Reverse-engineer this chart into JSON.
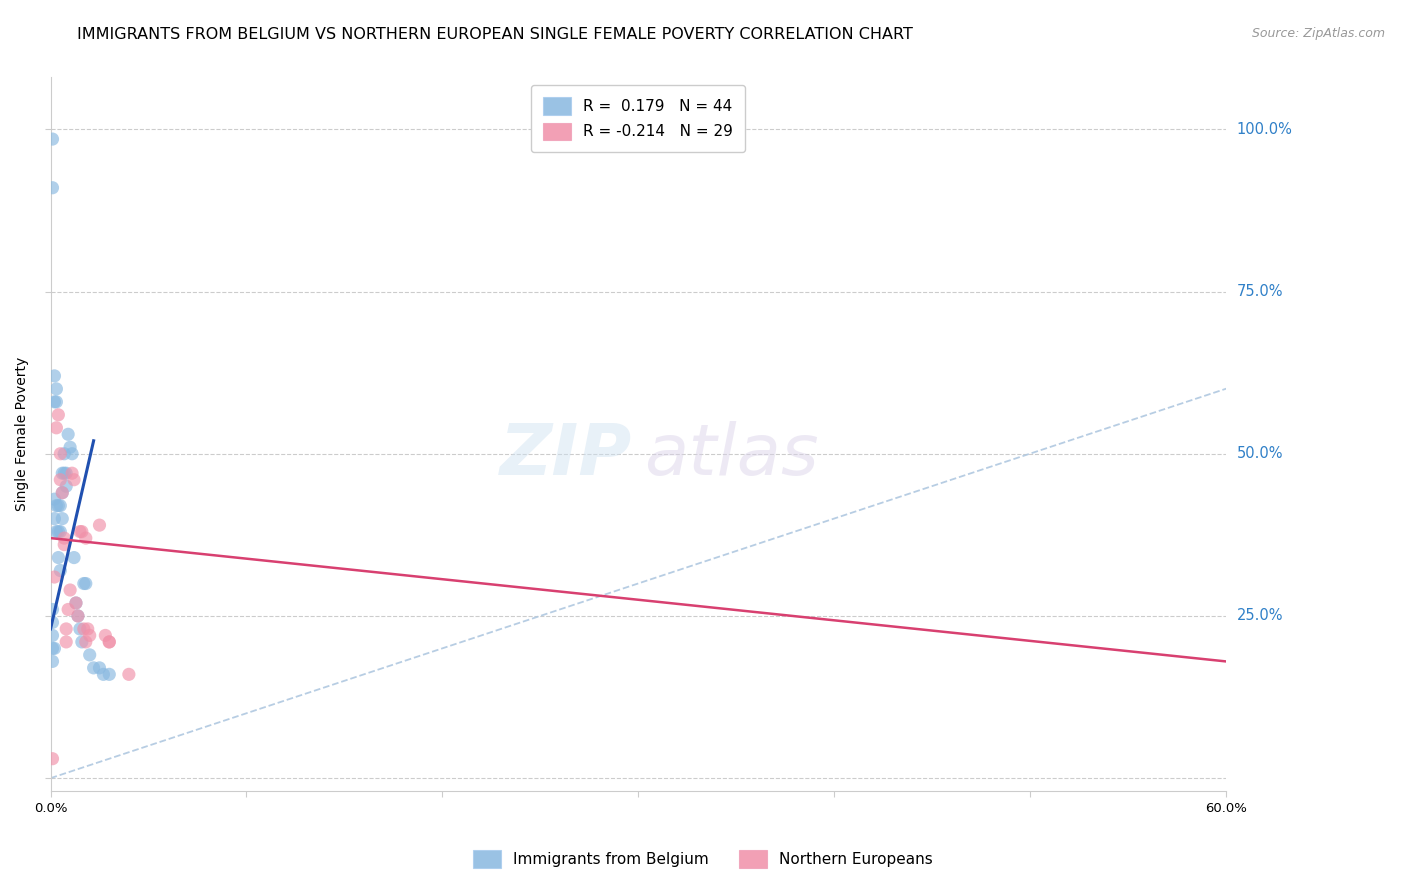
{
  "title": "IMMIGRANTS FROM BELGIUM VS NORTHERN EUROPEAN SINGLE FEMALE POVERTY CORRELATION CHART",
  "source": "Source: ZipAtlas.com",
  "ylabel": "Single Female Poverty",
  "xlim": [
    0.0,
    0.6
  ],
  "ylim": [
    -0.02,
    1.08
  ],
  "legend_entries": [
    {
      "label": "Immigrants from Belgium",
      "color": "#a8c8e8",
      "R": "0.179",
      "N": "44"
    },
    {
      "label": "Northern Europeans",
      "color": "#f4a0b8",
      "R": "-0.214",
      "N": "29"
    }
  ],
  "belgium_scatter_x": [
    0.001,
    0.001,
    0.002,
    0.002,
    0.002,
    0.002,
    0.003,
    0.003,
    0.003,
    0.003,
    0.004,
    0.004,
    0.004,
    0.005,
    0.005,
    0.005,
    0.006,
    0.006,
    0.006,
    0.007,
    0.007,
    0.008,
    0.008,
    0.009,
    0.01,
    0.011,
    0.012,
    0.013,
    0.014,
    0.015,
    0.016,
    0.017,
    0.018,
    0.02,
    0.022,
    0.025,
    0.027,
    0.03,
    0.001,
    0.001,
    0.001,
    0.001,
    0.001,
    0.002
  ],
  "belgium_scatter_y": [
    0.985,
    0.91,
    0.62,
    0.58,
    0.43,
    0.4,
    0.6,
    0.58,
    0.42,
    0.38,
    0.42,
    0.38,
    0.34,
    0.42,
    0.38,
    0.32,
    0.47,
    0.44,
    0.4,
    0.5,
    0.47,
    0.47,
    0.45,
    0.53,
    0.51,
    0.5,
    0.34,
    0.27,
    0.25,
    0.23,
    0.21,
    0.3,
    0.3,
    0.19,
    0.17,
    0.17,
    0.16,
    0.16,
    0.26,
    0.24,
    0.22,
    0.2,
    0.18,
    0.2
  ],
  "northern_scatter_x": [
    0.002,
    0.003,
    0.004,
    0.005,
    0.005,
    0.006,
    0.007,
    0.007,
    0.008,
    0.008,
    0.009,
    0.01,
    0.011,
    0.012,
    0.013,
    0.014,
    0.015,
    0.016,
    0.017,
    0.018,
    0.018,
    0.019,
    0.02,
    0.025,
    0.028,
    0.03,
    0.04,
    0.001,
    0.03
  ],
  "northern_scatter_y": [
    0.31,
    0.54,
    0.56,
    0.5,
    0.46,
    0.44,
    0.37,
    0.36,
    0.21,
    0.23,
    0.26,
    0.29,
    0.47,
    0.46,
    0.27,
    0.25,
    0.38,
    0.38,
    0.23,
    0.21,
    0.37,
    0.23,
    0.22,
    0.39,
    0.22,
    0.21,
    0.16,
    0.03,
    0.21
  ],
  "belgium_trendline": {
    "x": [
      0.0,
      0.022
    ],
    "y": [
      0.23,
      0.52
    ]
  },
  "northern_trendline": {
    "x": [
      0.0,
      0.6
    ],
    "y": [
      0.37,
      0.18
    ]
  },
  "diagonal_line": {
    "x": [
      0.0,
      1.0
    ],
    "y": [
      0.0,
      1.0
    ]
  },
  "background_color": "#ffffff",
  "grid_color": "#cccccc",
  "scatter_alpha": 0.65,
  "scatter_size": 90,
  "belgium_color": "#88b8e0",
  "northern_color": "#f090a8",
  "trendline_belgium_color": "#2050b0",
  "trendline_northern_color": "#d84070",
  "diagonal_color": "#b0c8e0",
  "right_axis_label_color": "#3080c8",
  "title_fontsize": 11.5,
  "source_fontsize": 9,
  "axis_label_fontsize": 10,
  "tick_fontsize": 9.5,
  "legend_fontsize": 11
}
